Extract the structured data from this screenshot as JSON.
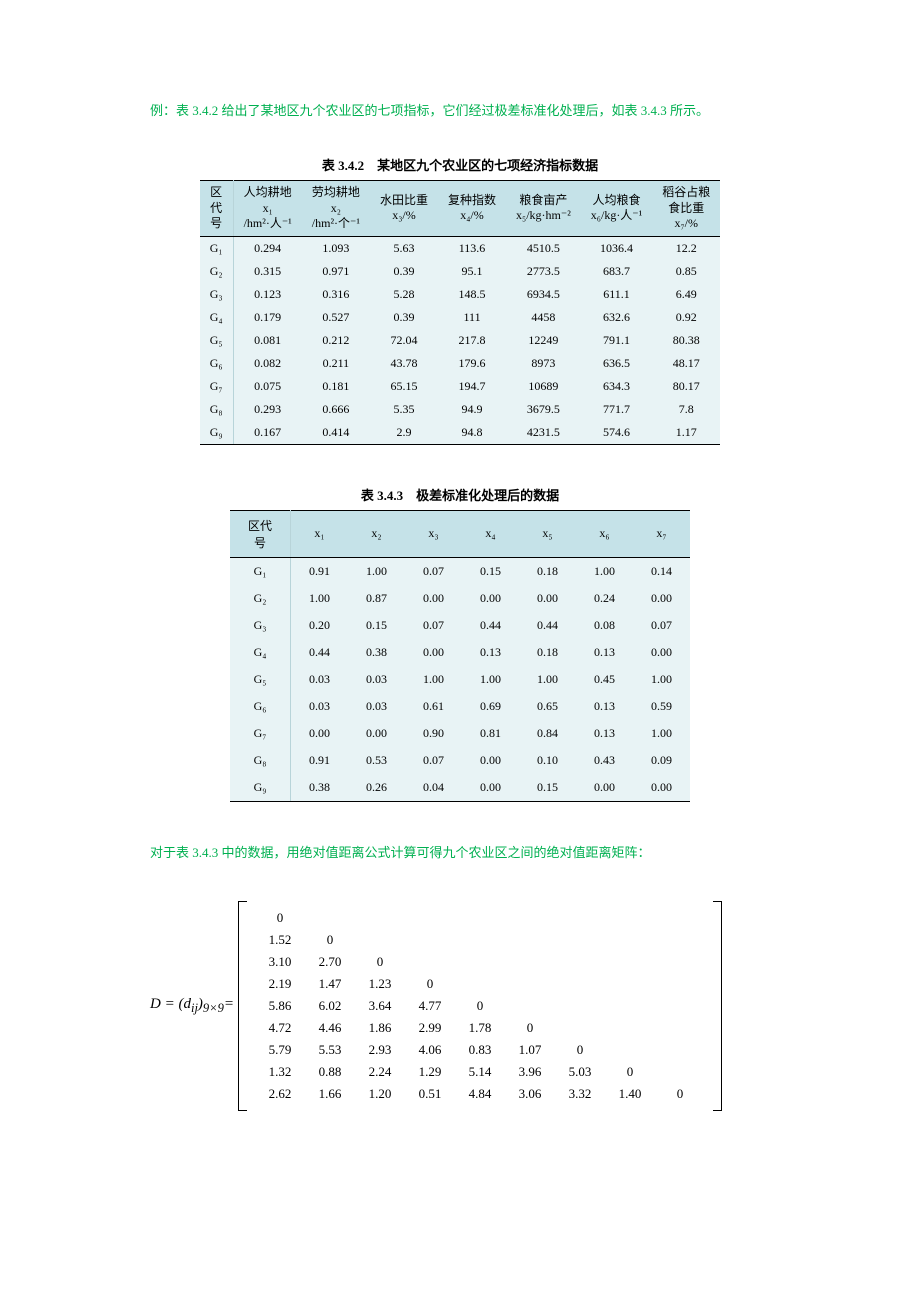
{
  "intro_text": "例：表 3.4.2 给出了某地区九个农业区的七项指标，它们经过极差标准化处理后，如表 3.4.3 所示。",
  "table342": {
    "caption": "表 3.4.2　某地区九个农业区的七项经济指标数据",
    "columns": [
      {
        "l1": "区",
        "l2": "代",
        "l3": "号"
      },
      {
        "l1": "人均耕地",
        "l2": "x₁",
        "l3": "/hm²·人⁻¹"
      },
      {
        "l1": "劳均耕地",
        "l2": "x₂",
        "l3": "/hm²·个⁻¹"
      },
      {
        "l1": "水田比重",
        "l2": "x₃/%",
        "l3": ""
      },
      {
        "l1": "复种指数",
        "l2": "x₄/%",
        "l3": ""
      },
      {
        "l1": "粮食亩产",
        "l2": "x₅/kg·hm⁻²",
        "l3": ""
      },
      {
        "l1": "人均粮食",
        "l2": "x₆/kg·人⁻¹",
        "l3": ""
      },
      {
        "l1": "稻谷占粮",
        "l2": "食比重",
        "l3": "x₇/%"
      }
    ],
    "rows": [
      [
        "G₁",
        "0.294",
        "1.093",
        "5.63",
        "113.6",
        "4510.5",
        "1036.4",
        "12.2"
      ],
      [
        "G₂",
        "0.315",
        "0.971",
        "0.39",
        "95.1",
        "2773.5",
        "683.7",
        "0.85"
      ],
      [
        "G₃",
        "0.123",
        "0.316",
        "5.28",
        "148.5",
        "6934.5",
        "611.1",
        "6.49"
      ],
      [
        "G₄",
        "0.179",
        "0.527",
        "0.39",
        "111",
        "4458",
        "632.6",
        "0.92"
      ],
      [
        "G₅",
        "0.081",
        "0.212",
        "72.04",
        "217.8",
        "12249",
        "791.1",
        "80.38"
      ],
      [
        "G₆",
        "0.082",
        "0.211",
        "43.78",
        "179.6",
        "8973",
        "636.5",
        "48.17"
      ],
      [
        "G₇",
        "0.075",
        "0.181",
        "65.15",
        "194.7",
        "10689",
        "634.3",
        "80.17"
      ],
      [
        "G₈",
        "0.293",
        "0.666",
        "5.35",
        "94.9",
        "3679.5",
        "771.7",
        "7.8"
      ],
      [
        "G₉",
        "0.167",
        "0.414",
        "2.9",
        "94.8",
        "4231.5",
        "574.6",
        "1.17"
      ]
    ]
  },
  "table343": {
    "caption": "表 3.4.3　极差标准化处理后的数据",
    "columns": [
      "区代\n号",
      "x₁",
      "x₂",
      "x₃",
      "x₄",
      "x₅",
      "x₆",
      "x₇"
    ],
    "rows": [
      [
        "G₁",
        "0.91",
        "1.00",
        "0.07",
        "0.15",
        "0.18",
        "1.00",
        "0.14"
      ],
      [
        "G₂",
        "1.00",
        "0.87",
        "0.00",
        "0.00",
        "0.00",
        "0.24",
        "0.00"
      ],
      [
        "G₃",
        "0.20",
        "0.15",
        "0.07",
        "0.44",
        "0.44",
        "0.08",
        "0.07"
      ],
      [
        "G₄",
        "0.44",
        "0.38",
        "0.00",
        "0.13",
        "0.18",
        "0.13",
        "0.00"
      ],
      [
        "G₅",
        "0.03",
        "0.03",
        "1.00",
        "1.00",
        "1.00",
        "0.45",
        "1.00"
      ],
      [
        "G₆",
        "0.03",
        "0.03",
        "0.61",
        "0.69",
        "0.65",
        "0.13",
        "0.59"
      ],
      [
        "G₇",
        "0.00",
        "0.00",
        "0.90",
        "0.81",
        "0.84",
        "0.13",
        "1.00"
      ],
      [
        "G₈",
        "0.91",
        "0.53",
        "0.07",
        "0.00",
        "0.10",
        "0.43",
        "0.09"
      ],
      [
        "G₉",
        "0.38",
        "0.26",
        "0.04",
        "0.00",
        "0.15",
        "0.00",
        "0.00"
      ]
    ]
  },
  "matrix_intro": "对于表 3.4.3 中的数据，用绝对值距离公式计算可得九个农业区之间的绝对值距离矩阵：",
  "matrix": {
    "label_html": "D = (d<sub>ij</sub>)<sub>9×9</sub>=",
    "rows": [
      [
        "0",
        "",
        "",
        "",
        "",
        "",
        "",
        "",
        ""
      ],
      [
        "1.52",
        "0",
        "",
        "",
        "",
        "",
        "",
        "",
        ""
      ],
      [
        "3.10",
        "2.70",
        "0",
        "",
        "",
        "",
        "",
        "",
        ""
      ],
      [
        "2.19",
        "1.47",
        "1.23",
        "0",
        "",
        "",
        "",
        "",
        ""
      ],
      [
        "5.86",
        "6.02",
        "3.64",
        "4.77",
        "0",
        "",
        "",
        "",
        ""
      ],
      [
        "4.72",
        "4.46",
        "1.86",
        "2.99",
        "1.78",
        "0",
        "",
        "",
        ""
      ],
      [
        "5.79",
        "5.53",
        "2.93",
        "4.06",
        "0.83",
        "1.07",
        "0",
        "",
        ""
      ],
      [
        "1.32",
        "0.88",
        "2.24",
        "1.29",
        "5.14",
        "3.96",
        "5.03",
        "0",
        ""
      ],
      [
        "2.62",
        "1.66",
        "1.20",
        "0.51",
        "4.84",
        "3.06",
        "3.32",
        "1.40",
        "0"
      ]
    ]
  },
  "colors": {
    "header_bg": "#c5e2e8",
    "body_bg": "#e8f3f5",
    "intro_color": "#00b050"
  }
}
